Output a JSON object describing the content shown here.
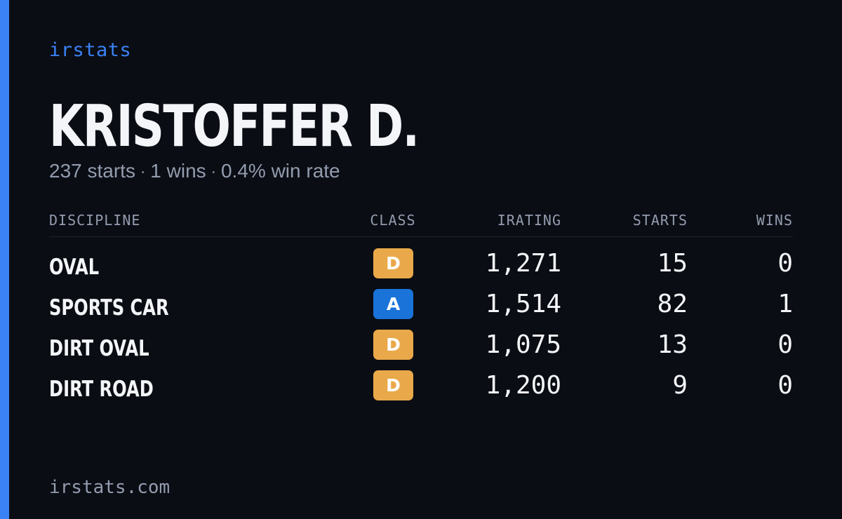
{
  "brand": "irstats",
  "driver": {
    "name": "KRISTOFFER D.",
    "starts_text": "237 starts",
    "wins_text": "1 wins",
    "win_rate_text": "0.4% win rate",
    "separator": "·"
  },
  "table": {
    "headers": {
      "discipline": "DISCIPLINE",
      "class": "CLASS",
      "irating": "IRATING",
      "starts": "STARTS",
      "wins": "WINS"
    },
    "rows": [
      {
        "discipline": "OVAL",
        "class": "D",
        "class_color": "#e9a94a",
        "irating": "1,271",
        "starts": "15",
        "wins": "0"
      },
      {
        "discipline": "SPORTS CAR",
        "class": "A",
        "class_color": "#1a73d9",
        "irating": "1,514",
        "starts": "82",
        "wins": "1"
      },
      {
        "discipline": "DIRT OVAL",
        "class": "D",
        "class_color": "#e9a94a",
        "irating": "1,075",
        "starts": "13",
        "wins": "0"
      },
      {
        "discipline": "DIRT ROAD",
        "class": "D",
        "class_color": "#e9a94a",
        "irating": "1,200",
        "starts": "9",
        "wins": "0"
      }
    ]
  },
  "footer": {
    "url": "irstats.com"
  },
  "colors": {
    "background": "#0a0d14",
    "accent": "#3b82f6",
    "text_primary": "#f4f5f8",
    "text_muted": "#939cae"
  }
}
